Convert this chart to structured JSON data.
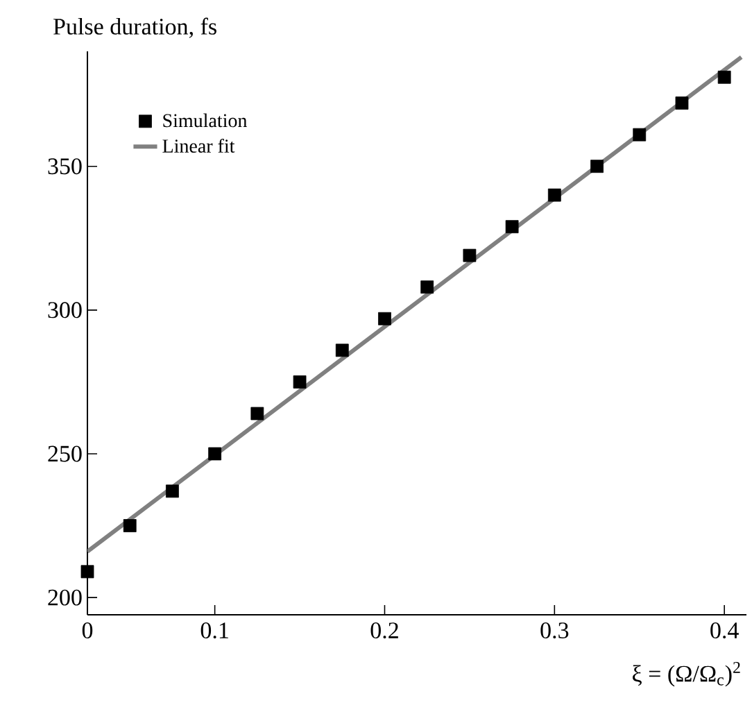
{
  "chart_data": {
    "type": "scatter",
    "ylabel": "Pulse duration, fs",
    "xlabel": "ξ = (Ω/Ω$_{c}$)$^{2}$",
    "xlim": [
      0.025,
      0.413
    ],
    "ylim": [
      194,
      390
    ],
    "xticks": [
      {
        "value": 0.025,
        "label": "0"
      },
      0.1,
      0.2,
      0.3,
      0.4
    ],
    "yticks": [
      200,
      250,
      300,
      350
    ],
    "legend": "top left",
    "series": [
      {
        "name": "Simulation",
        "marker": "square",
        "color": "#000000",
        "x": [
          0.025,
          0.05,
          0.075,
          0.1,
          0.125,
          0.15,
          0.175,
          0.2,
          0.225,
          0.25,
          0.275,
          0.3,
          0.325,
          0.35,
          0.375,
          0.4
        ],
        "values": [
          209,
          225,
          237,
          250,
          264,
          275,
          286,
          297,
          308,
          319,
          329,
          340,
          350,
          361,
          372,
          381
        ]
      },
      {
        "name": "Linear fit",
        "type": "line",
        "color": "#808080",
        "x": [
          0.025,
          0.41
        ],
        "values": [
          216,
          388
        ]
      }
    ]
  }
}
